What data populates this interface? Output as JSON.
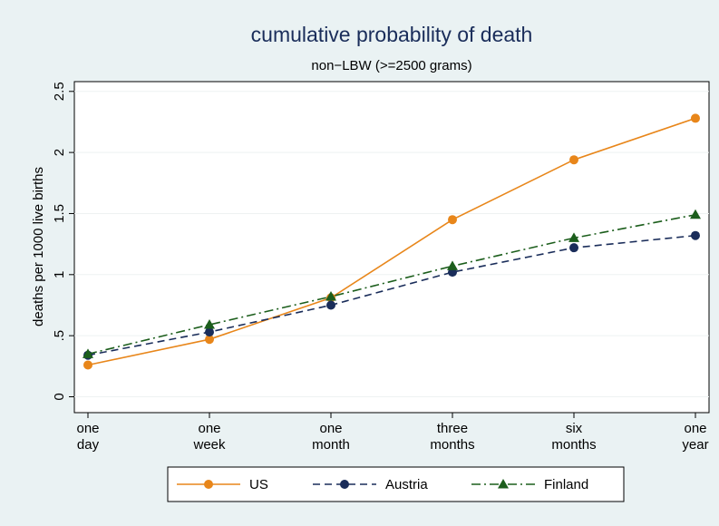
{
  "chart_data": {
    "type": "line",
    "title": "cumulative probability of death",
    "subtitle": "non−LBW (>=2500 grams)",
    "y_label": "deaths per 1000 live births",
    "categories": [
      [
        "one",
        "day"
      ],
      [
        "one",
        "week"
      ],
      [
        "one",
        "month"
      ],
      [
        "three",
        "months"
      ],
      [
        "six",
        "months"
      ],
      [
        "one",
        "year"
      ]
    ],
    "series": [
      {
        "name": "US",
        "color": "#e8861a",
        "line_style": "solid",
        "marker": "circle",
        "values": [
          0.26,
          0.47,
          0.81,
          1.45,
          1.94,
          2.28
        ]
      },
      {
        "name": "Austria",
        "color": "#1a2d5a",
        "line_style": "dash",
        "marker": "circle",
        "values": [
          0.34,
          0.53,
          0.75,
          1.02,
          1.22,
          1.32
        ]
      },
      {
        "name": "Finland",
        "color": "#1c5e1c",
        "line_style": "dashdot",
        "marker": "triangle",
        "values": [
          0.35,
          0.59,
          0.82,
          1.07,
          1.3,
          1.49
        ]
      }
    ],
    "ylim": [
      -0.13,
      2.58
    ],
    "yticks": [
      0,
      {
        "value": 0.5,
        "label": ".5"
      },
      1,
      1.5,
      2,
      2.5
    ],
    "grid": true,
    "legend": "bottom"
  }
}
